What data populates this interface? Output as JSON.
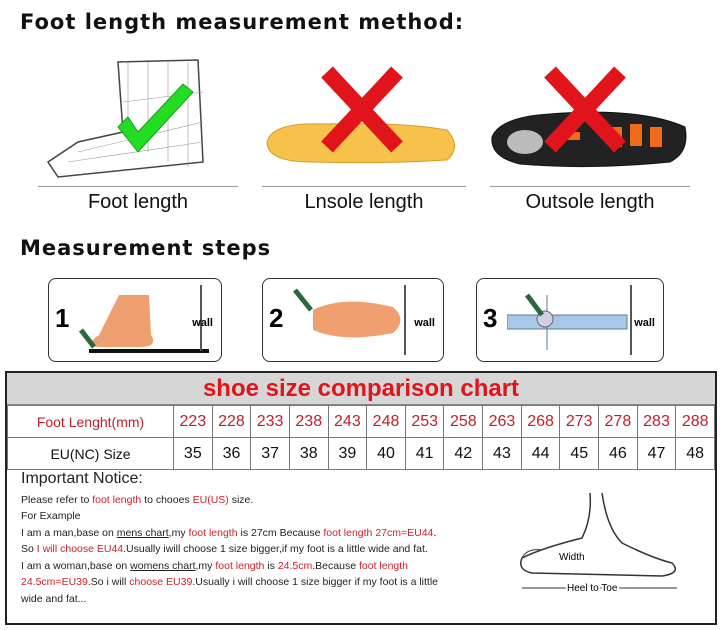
{
  "method_title": "Foot length measurement method:",
  "methods": [
    {
      "label": "Foot length",
      "mark": "check-icon"
    },
    {
      "label": "Lnsole length",
      "mark": "cross-icon"
    },
    {
      "label": "Outsole length",
      "mark": "cross-icon"
    }
  ],
  "steps_title": "Measurement steps",
  "steps": [
    {
      "num": "1",
      "wall": "wall"
    },
    {
      "num": "2",
      "wall": "wall"
    },
    {
      "num": "3",
      "wall": "wall"
    }
  ],
  "chart": {
    "title": "shoe size comparison chart",
    "row1_label": "Foot Lenght(mm)",
    "row2_label": "EU(NC) Size",
    "foot_length_mm": [
      "223",
      "228",
      "233",
      "238",
      "243",
      "248",
      "253",
      "258",
      "263",
      "268",
      "273",
      "278",
      "283",
      "288"
    ],
    "eu_size": [
      "35",
      "36",
      "37",
      "38",
      "39",
      "40",
      "41",
      "42",
      "43",
      "44",
      "45",
      "46",
      "47",
      "48"
    ]
  },
  "notice": {
    "title": "Important Notice:",
    "lines": [
      [
        [
          "Please refer to ",
          ""
        ],
        [
          "foot length",
          "red"
        ],
        [
          " to chooes ",
          ""
        ],
        [
          "EU(US)",
          "red"
        ],
        [
          " size.",
          ""
        ]
      ],
      [
        [
          "For Example",
          ""
        ]
      ],
      [
        [
          "I am a man,base on ",
          ""
        ],
        [
          "mens chart",
          "ul"
        ],
        [
          ",my ",
          ""
        ],
        [
          "foot length",
          "red"
        ],
        [
          " is 27cm Because ",
          ""
        ],
        [
          "foot length 27cm=EU44",
          "red"
        ],
        [
          ".",
          ""
        ]
      ],
      [
        [
          "So ",
          ""
        ],
        [
          "I will choose EU44",
          "red"
        ],
        [
          ".Usually iwill choose 1 size bigger,if my foot is a little wide and fat.",
          ""
        ]
      ],
      [
        [
          "I am a woman,base on ",
          ""
        ],
        [
          "womens chart",
          "ul"
        ],
        [
          ",my ",
          ""
        ],
        [
          "foot length",
          "red"
        ],
        [
          " is ",
          ""
        ],
        [
          "24.5cm",
          "red"
        ],
        [
          ".Because ",
          ""
        ],
        [
          "foot length",
          "red"
        ]
      ],
      [
        [
          "24.5cm=EU39",
          "red"
        ],
        [
          ".So i will ",
          ""
        ],
        [
          "choose EU39",
          "red"
        ],
        [
          ".Usually i will choose 1 size bigger if my foot is a little",
          ""
        ]
      ],
      [
        [
          "wide and fat...",
          ""
        ]
      ]
    ],
    "diagram_width": "Width",
    "diagram_heel": "Heel to Toe"
  },
  "colors": {
    "accent_red": "#e0141a",
    "check_green": "#22dd22",
    "header_gray": "#d6d6d6"
  }
}
